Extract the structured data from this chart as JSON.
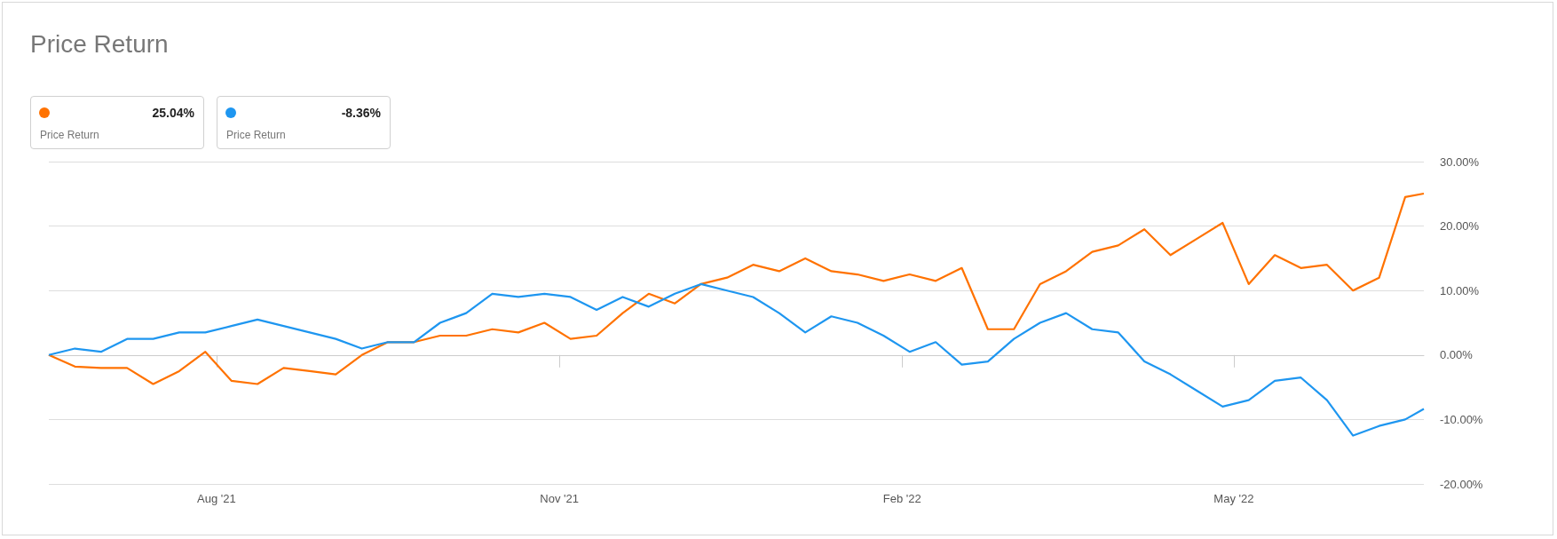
{
  "chart_data": {
    "type": "line",
    "title": "Price Return",
    "annotations": [
      "25.04%",
      "Price Return",
      "-8.36%",
      "Price Return"
    ],
    "x": [
      "2021-06-17",
      "2021-06-24",
      "2021-07-01",
      "2021-07-08",
      "2021-07-15",
      "2021-07-22",
      "2021-07-29",
      "2021-08-05",
      "2021-08-12",
      "2021-08-19",
      "2021-08-26",
      "2021-09-02",
      "2021-09-09",
      "2021-09-16",
      "2021-09-23",
      "2021-09-30",
      "2021-10-07",
      "2021-10-14",
      "2021-10-21",
      "2021-10-28",
      "2021-11-04",
      "2021-11-11",
      "2021-11-18",
      "2021-11-25",
      "2021-12-02",
      "2021-12-09",
      "2021-12-16",
      "2021-12-23",
      "2021-12-30",
      "2022-01-06",
      "2022-01-13",
      "2022-01-20",
      "2022-01-27",
      "2022-02-03",
      "2022-02-10",
      "2022-02-17",
      "2022-02-24",
      "2022-03-03",
      "2022-03-10",
      "2022-03-17",
      "2022-03-24",
      "2022-03-31",
      "2022-04-07",
      "2022-04-14",
      "2022-04-21",
      "2022-04-28",
      "2022-05-05",
      "2022-05-12",
      "2022-05-19",
      "2022-05-26",
      "2022-06-02",
      "2022-06-09",
      "2022-06-16",
      "2022-06-21"
    ],
    "series": [
      {
        "color": "#ff7200",
        "values": [
          0,
          -1.8,
          -2,
          -2,
          -4.5,
          -2.5,
          0.5,
          -4,
          -4.5,
          -2,
          -2.5,
          -3,
          0,
          2,
          2,
          3,
          3,
          4,
          3.5,
          5,
          2.5,
          3,
          6.5,
          9.5,
          8,
          11,
          12,
          14,
          13,
          15,
          13,
          12.5,
          11.5,
          12.5,
          11.5,
          13.5,
          4,
          4,
          11,
          13,
          16,
          17,
          19.5,
          15.5,
          18,
          20.5,
          11,
          15.5,
          13.5,
          14,
          10,
          12,
          24.5,
          25.04
        ]
      },
      {
        "color": "#1e96f0",
        "values": [
          0,
          1,
          0.5,
          2.5,
          2.5,
          3.5,
          3.5,
          4.5,
          5.5,
          4.5,
          3.5,
          2.5,
          1,
          2,
          2,
          5,
          6.5,
          9.5,
          9,
          9.5,
          9,
          7,
          9,
          7.5,
          9.5,
          11,
          10,
          9,
          6.5,
          3.5,
          6,
          5,
          3,
          0.5,
          2,
          -1.5,
          -1,
          2.5,
          5,
          6.5,
          4,
          3.5,
          -1,
          -3,
          -5.5,
          -8,
          -7,
          -4,
          -3.5,
          -7,
          -12.5,
          -11,
          -10,
          -8.36
        ]
      }
    ],
    "xlim": [
      "2021-06-17",
      "2022-06-21"
    ],
    "xticks": [
      {
        "value": "2021-08-01",
        "label": "Aug '21"
      },
      {
        "value": "2021-11-01",
        "label": "Nov '21"
      },
      {
        "value": "2022-02-01",
        "label": "Feb '22"
      },
      {
        "value": "2022-05-01",
        "label": "May '22"
      }
    ],
    "ylim": [
      -20,
      30
    ],
    "yticks": [
      {
        "value": -20,
        "label": "-20.00%"
      },
      {
        "value": -10,
        "label": "-10.00%"
      },
      {
        "value": 0,
        "label": "0.00%"
      },
      {
        "value": 10,
        "label": "10.00%"
      },
      {
        "value": 20,
        "label": "20.00%"
      },
      {
        "value": 30,
        "label": "30.00%"
      }
    ],
    "grid": "y",
    "marker": "none",
    "line_style": "solid"
  }
}
